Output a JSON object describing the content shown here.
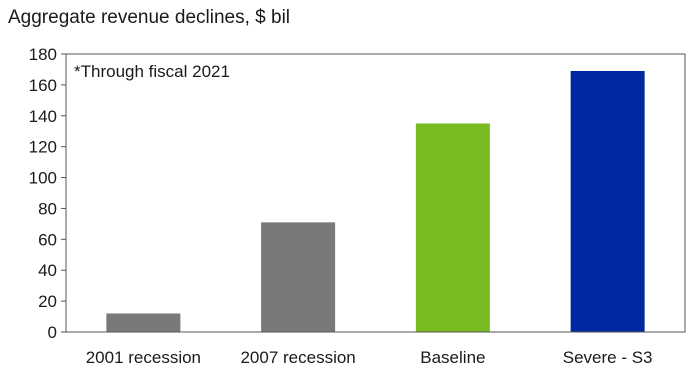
{
  "chart_data": {
    "type": "bar",
    "title": "Aggregate revenue declines, $ bil",
    "annotation": "*Through fiscal 2021",
    "categories": [
      "2001 recession",
      "2007 recession",
      "Baseline",
      "Severe - S3"
    ],
    "values": [
      12,
      71,
      135,
      169
    ],
    "colors": [
      "#77797b",
      "#77797b",
      "#78bc21",
      "#0028a0"
    ],
    "ylim": [
      0,
      180
    ],
    "yticks": [
      0,
      20,
      40,
      60,
      80,
      100,
      120,
      140,
      160,
      180
    ],
    "xlabel": "",
    "ylabel": "",
    "grid": false,
    "legend": "none"
  }
}
